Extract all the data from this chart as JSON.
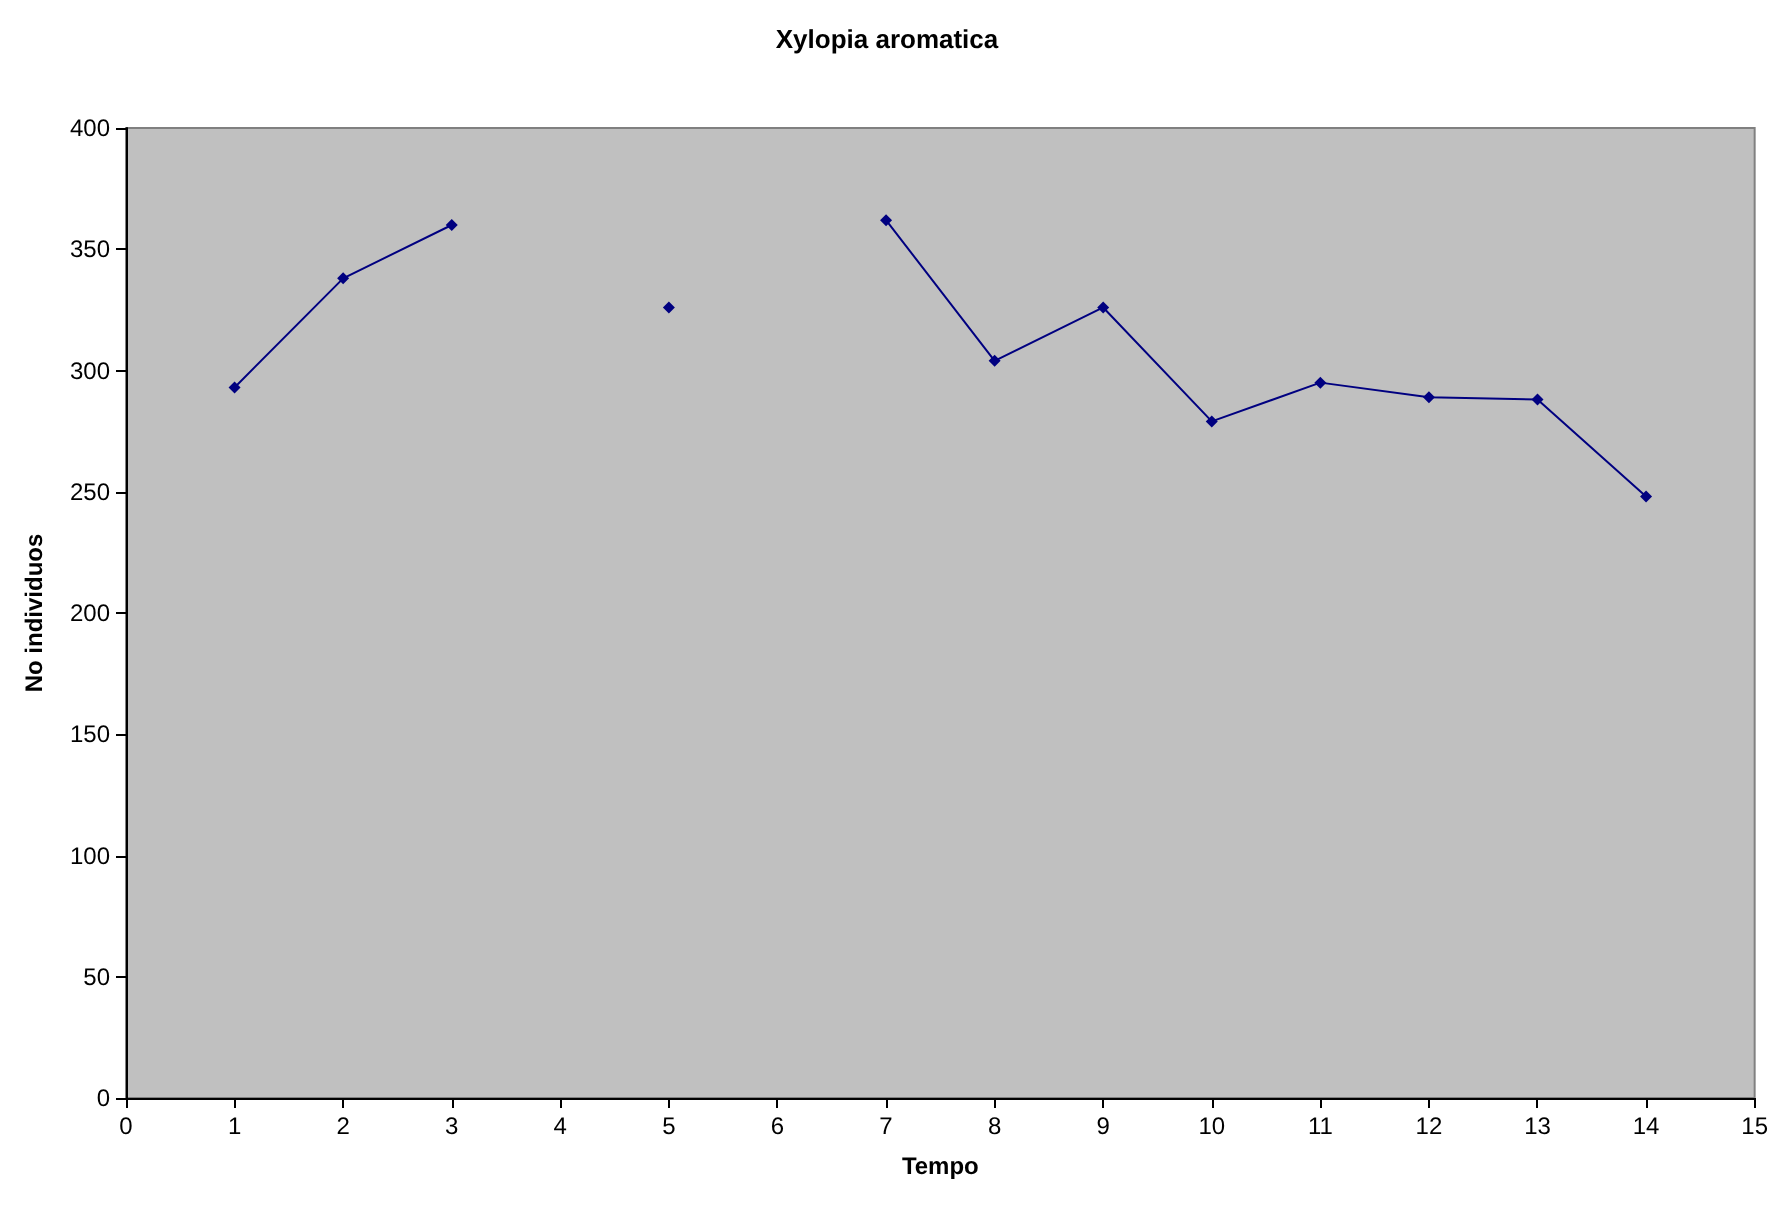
{
  "chart_data": {
    "type": "line",
    "title": "Xylopia aromatica",
    "xlabel": "Tempo",
    "ylabel": "No individuos",
    "x": [
      1,
      2,
      3,
      4,
      5,
      6,
      7,
      8,
      9,
      10,
      11,
      12,
      13,
      14
    ],
    "series": [
      {
        "color": "#000080",
        "values": [
          293,
          338,
          360,
          null,
          326,
          null,
          362,
          304,
          326,
          279,
          295,
          289,
          288,
          248
        ]
      }
    ],
    "xlim": [
      0,
      15
    ],
    "xticks": [
      0,
      1,
      2,
      3,
      4,
      5,
      6,
      7,
      8,
      9,
      10,
      11,
      12,
      13,
      14,
      15
    ],
    "ylim": [
      0,
      400
    ],
    "yticks": [
      0,
      50,
      100,
      150,
      200,
      250,
      300,
      350,
      400
    ],
    "grid": false,
    "marker": "diamond",
    "line_style": "solid"
  }
}
